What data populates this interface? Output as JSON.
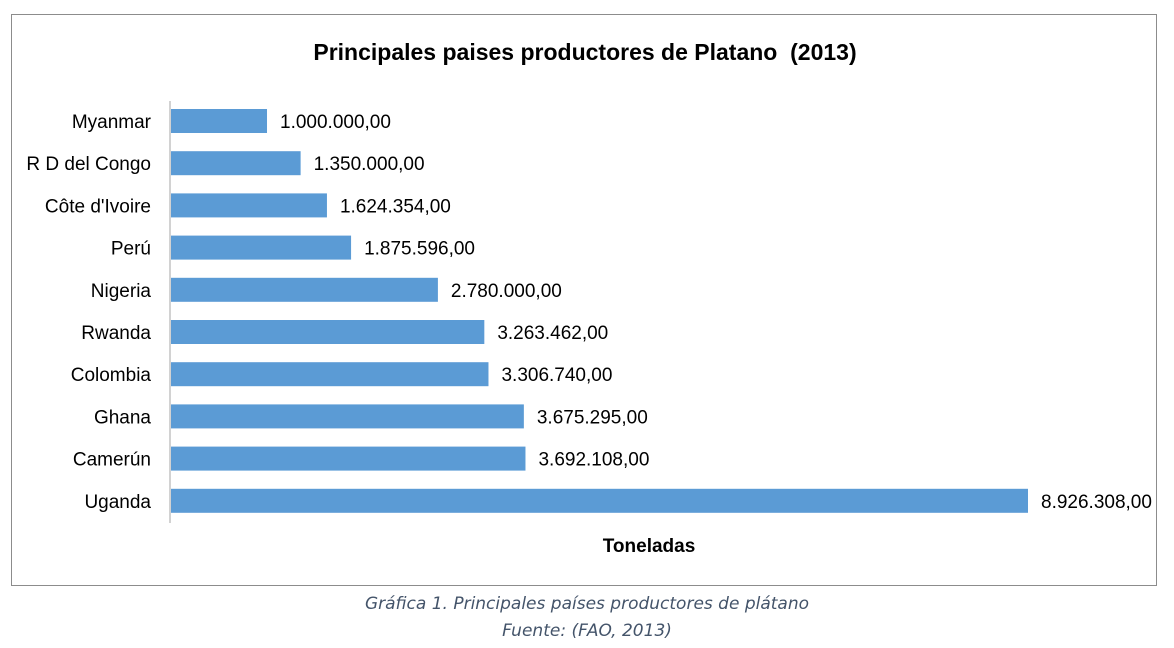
{
  "chart_data": {
    "type": "bar",
    "orientation": "horizontal",
    "title": "Principales paises productores de Platano  (2013)",
    "xlabel": "Toneladas",
    "ylabel": "",
    "categories": [
      "Myanmar",
      "R D del Congo",
      "Côte d'Ivoire",
      "Perú",
      "Nigeria",
      "Rwanda",
      "Colombia",
      "Ghana",
      "Camerún",
      "Uganda"
    ],
    "values": [
      1000000,
      1350000,
      1624354,
      1875596,
      2780000,
      3263462,
      3306740,
      3675295,
      3692108,
      8926308
    ],
    "data_labels": [
      "1.000.000,00",
      "1.350.000,00",
      "1.624.354,00",
      "1.875.596,00",
      "2.780.000,00",
      "3.263.462,00",
      "3.306.740,00",
      "3.675.295,00",
      "3.692.108,00",
      "8.926.308,00"
    ],
    "xlim": [
      0,
      8926308
    ],
    "bar_color": "#5b9bd5",
    "grid": false,
    "legend": "none"
  },
  "caption": {
    "line1": "Gráfica 1. Principales países productores de plátano",
    "line2": "Fuente: (FAO, 2013)"
  }
}
